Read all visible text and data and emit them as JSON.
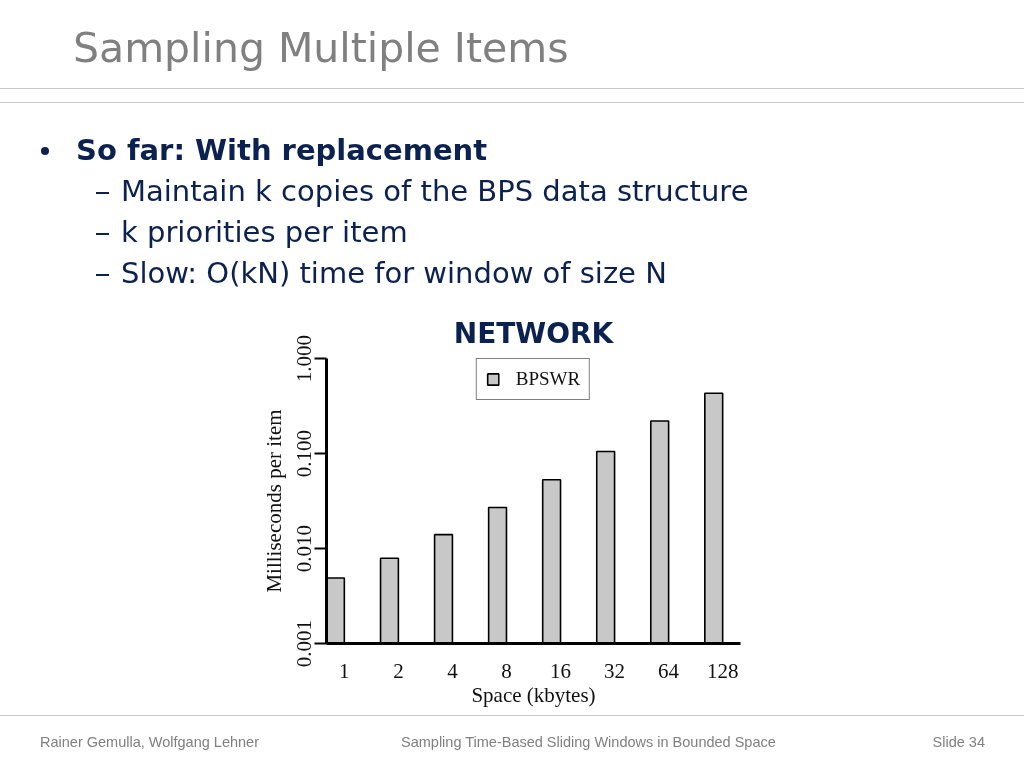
{
  "chart_data": {
    "type": "bar",
    "title": "Sampling Multiple Items",
    "subtitle": "NETWORK",
    "xlabel": "Space (kbytes)",
    "ylabel": "Milliseconds per item",
    "categories": [
      "1",
      "2",
      "4",
      "8",
      "16",
      "32",
      "64",
      "128"
    ],
    "series": [
      {
        "name": "BPSWR",
        "color": "#c8c8c8",
        "values": [
          0.0049,
          0.0079,
          0.014,
          0.027,
          0.053,
          0.105,
          0.22,
          0.43
        ]
      }
    ],
    "ylim": [
      0.001,
      1
    ],
    "yticks": [
      0.001,
      {
        "value": 0.01,
        "label": "0.010"
      },
      {
        "value": 0.1,
        "label": "0.100"
      },
      {
        "value": 1,
        "label": "1.000"
      }
    ],
    "log": true,
    "legend": "top",
    "annotations": [
      "So far: With replacement",
      "Maintain k copies of the BPS data structure",
      "k priorities per item",
      "Slow: O(kN) time for window of size N",
      "Rainer Gemulla, Wolfgang Lehner",
      "Sampling Time-Based Sliding Windows in Bounded Space",
      "Slide 34"
    ]
  }
}
